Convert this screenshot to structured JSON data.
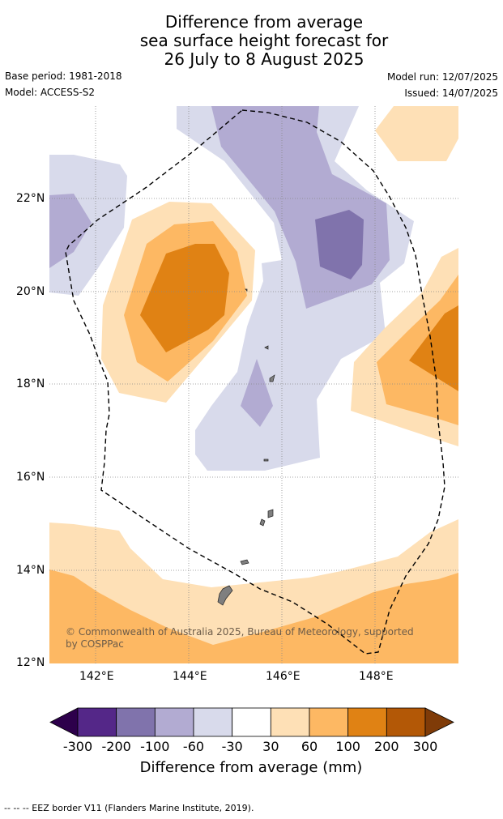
{
  "title": {
    "line1": "Difference from average",
    "line2": "sea surface height forecast for",
    "line3": "26 July to 8 August 2025"
  },
  "meta": {
    "base_period": "Base period: 1981-2018",
    "model": "Model: ACCESS-S2",
    "model_run": "Model run: 12/07/2025",
    "issued": "Issued: 14/07/2025"
  },
  "map": {
    "lon_range": [
      141,
      149.8
    ],
    "lat_range": [
      12,
      24
    ],
    "lat_ticks": [
      "22°N",
      "20°N",
      "18°N",
      "16°N",
      "14°N",
      "12°N"
    ],
    "lon_ticks": [
      "142°E",
      "144°E",
      "146°E",
      "148°E"
    ],
    "attribution": "© Commonwealth of Australia 2025, Bureau of Meteorology, supported by COSPPac"
  },
  "legend": {
    "title": "Difference from average (mm)",
    "labels": [
      "-300",
      "-200",
      "-100",
      "-60",
      "-30",
      "30",
      "60",
      "100",
      "200",
      "300"
    ],
    "colors": [
      "#2d004b",
      "#542788",
      "#8073ac",
      "#b2abd2",
      "#d8daeb",
      "#ffffff",
      "#fee0b6",
      "#fdb863",
      "#e08214",
      "#b35806",
      "#7f3b08"
    ]
  },
  "footer": "--  --  -- EEZ border V11 (Flanders Marine Institute, 2019)."
}
